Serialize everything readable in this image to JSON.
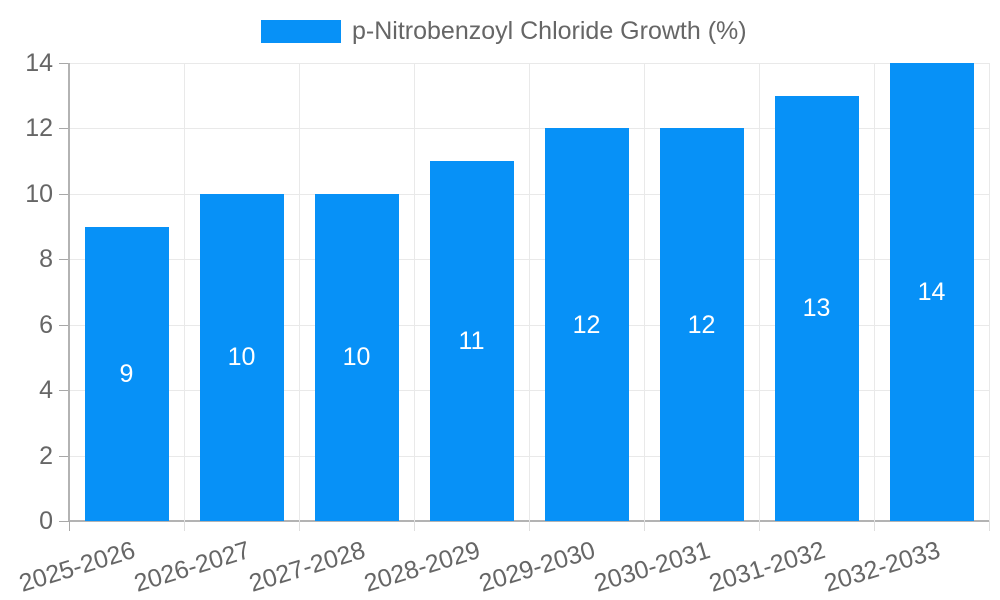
{
  "chart_data": {
    "type": "bar",
    "title": "",
    "legend": "p-Nitrobenzoyl Chloride Growth (%)",
    "legend_position": "top",
    "categories": [
      "2025-2026",
      "2026-2027",
      "2027-2028",
      "2028-2029",
      "2029-2030",
      "2030-2031",
      "2031-2032",
      "2032-2033"
    ],
    "values": [
      9,
      10,
      10,
      11,
      12,
      12,
      13,
      14
    ],
    "bar_value_labels": [
      "9",
      "10",
      "10",
      "11",
      "12",
      "12",
      "13",
      "14"
    ],
    "xlabel": "",
    "ylabel": "",
    "ylim": [
      0,
      14
    ],
    "yticks": [
      0,
      2,
      4,
      6,
      8,
      10,
      12,
      14
    ],
    "grid": true,
    "colors": {
      "bar": "#0791f7",
      "text": "#666666",
      "gridline": "#e9e9e9",
      "axis": "#b3b3b3",
      "tick_dark": "#a8a8a8",
      "tick_light": "#dedede",
      "bar_label": "#ffffff",
      "background": "#ffffff"
    }
  }
}
